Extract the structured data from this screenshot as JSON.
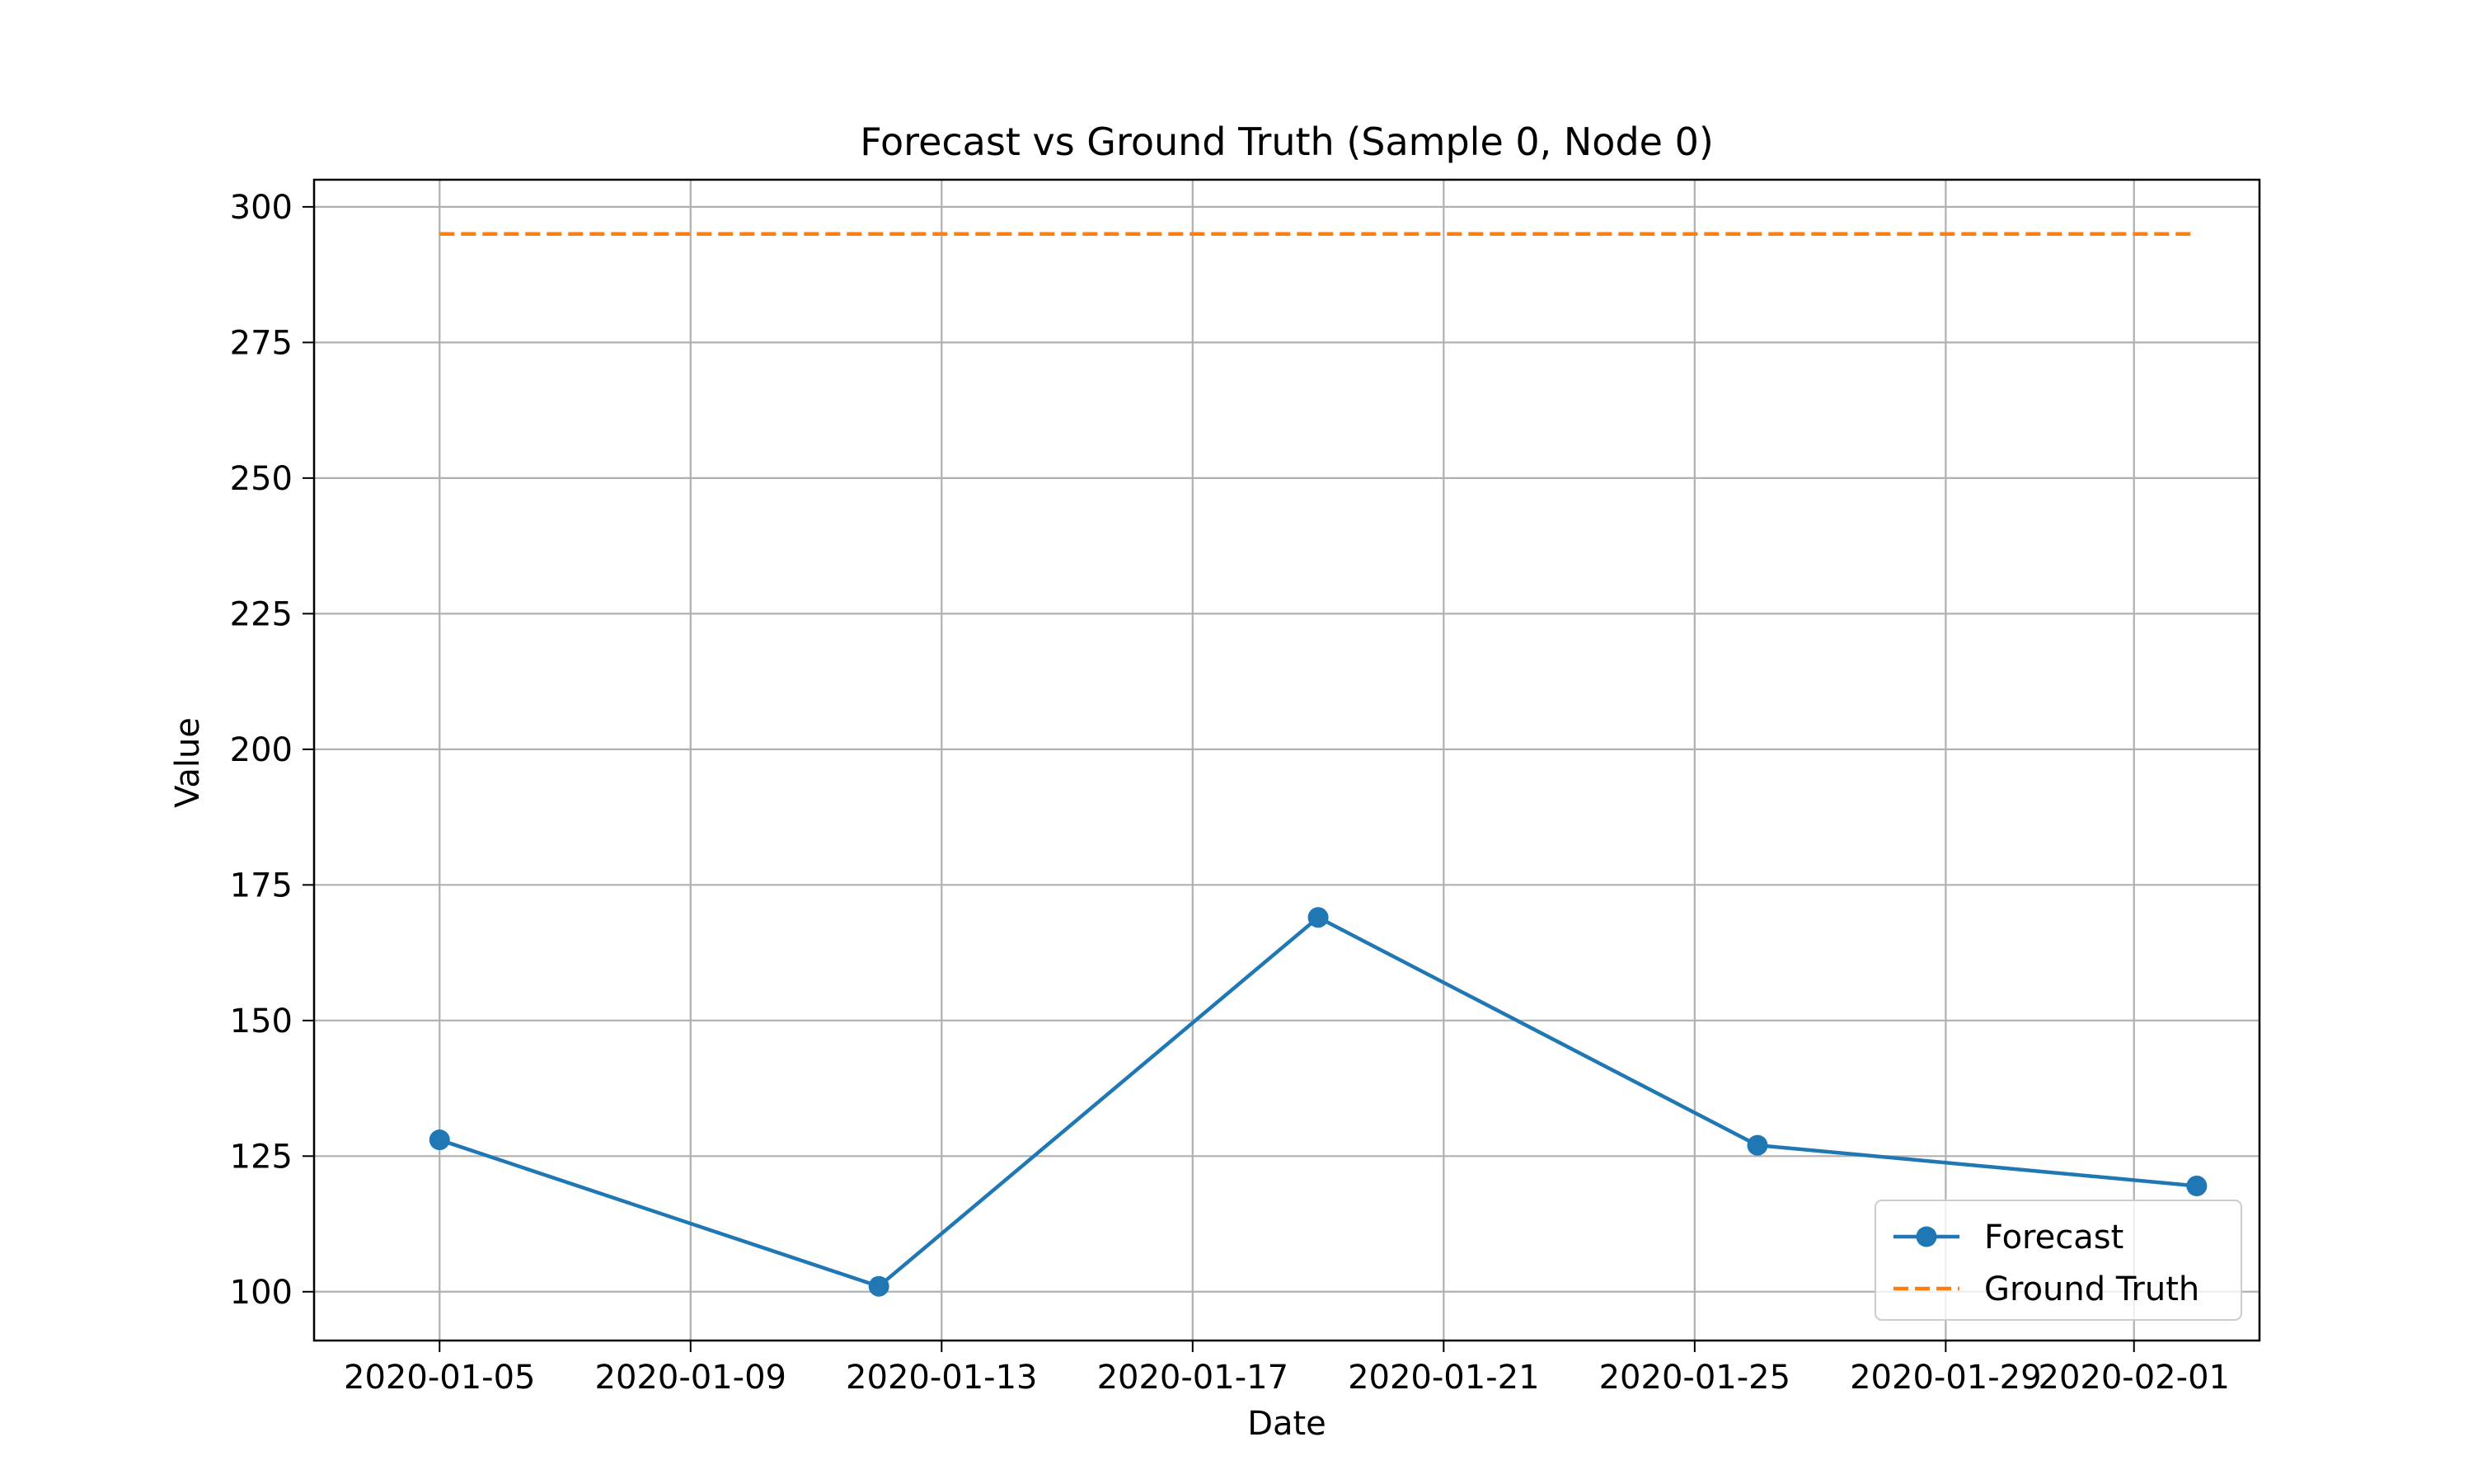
{
  "chart_data": {
    "type": "line",
    "title": "Forecast vs Ground Truth (Sample 0, Node 0)",
    "xlabel": "Date",
    "ylabel": "Value",
    "x_ticks": [
      "2020-01-05",
      "2020-01-09",
      "2020-01-13",
      "2020-01-17",
      "2020-01-21",
      "2020-01-25",
      "2020-01-29",
      "2020-02-01"
    ],
    "y_ticks": [
      100,
      125,
      150,
      175,
      200,
      225,
      250,
      275,
      300
    ],
    "xlim": [
      "2020-01-03",
      "2020-02-03"
    ],
    "ylim": [
      91,
      305
    ],
    "grid": true,
    "legend_position": "lower-right",
    "series": [
      {
        "name": "Forecast",
        "style": "solid-with-markers",
        "color": "#1f77b4",
        "x": [
          "2020-01-05",
          "2020-01-12",
          "2020-01-19",
          "2020-01-26",
          "2020-02-02"
        ],
        "y": [
          128,
          101,
          169,
          127,
          119.5
        ]
      },
      {
        "name": "Ground Truth",
        "style": "dashed",
        "color": "#ff7f0e",
        "x": [
          "2020-01-05",
          "2020-01-12",
          "2020-01-19",
          "2020-01-26",
          "2020-02-02"
        ],
        "y": [
          295,
          295,
          295,
          295,
          295
        ]
      }
    ]
  }
}
